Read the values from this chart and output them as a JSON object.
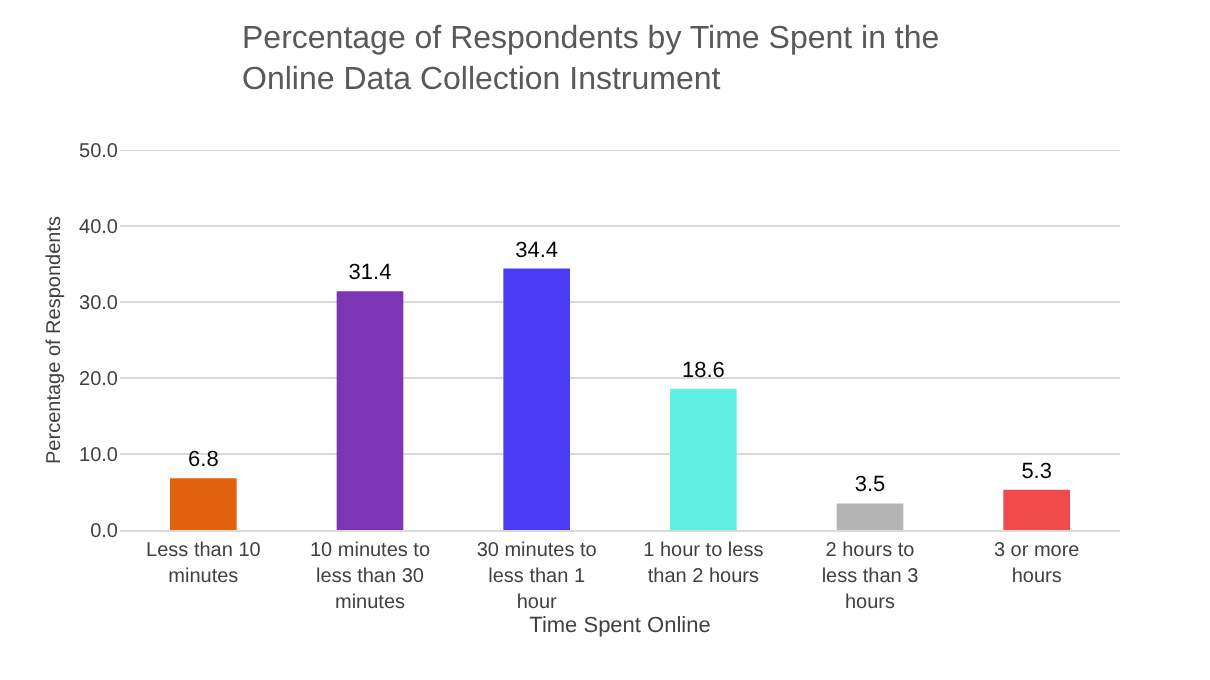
{
  "chart_data": {
    "type": "bar",
    "title": "Percentage of Respondents by Time Spent in the Online Data Collection Instrument",
    "xlabel": "Time Spent Online",
    "ylabel": "Percentage of Respondents",
    "categories": [
      "Less than 10 minutes",
      "10 minutes to less than 30 minutes",
      "30 minutes to less than 1 hour",
      "1 hour to less than 2 hours",
      "2 hours to less than 3 hours",
      "3 or more hours"
    ],
    "values": [
      6.8,
      31.4,
      34.4,
      18.6,
      3.5,
      5.3
    ],
    "colors": [
      "#e0620f",
      "#7b35b5",
      "#4a3cf5",
      "#5ff0e0",
      "#b4b4b4",
      "#f04a4a"
    ],
    "ylim": [
      0,
      50
    ],
    "yticks": [
      {
        "value": 0,
        "label": "0.0"
      },
      {
        "value": 10,
        "label": "10.0"
      },
      {
        "value": 20,
        "label": "20.0"
      },
      {
        "value": 30,
        "label": "30.0"
      },
      {
        "value": 40,
        "label": "40.0"
      },
      {
        "value": 50,
        "label": "50.0"
      }
    ],
    "grid": "y",
    "data_labels": true
  }
}
